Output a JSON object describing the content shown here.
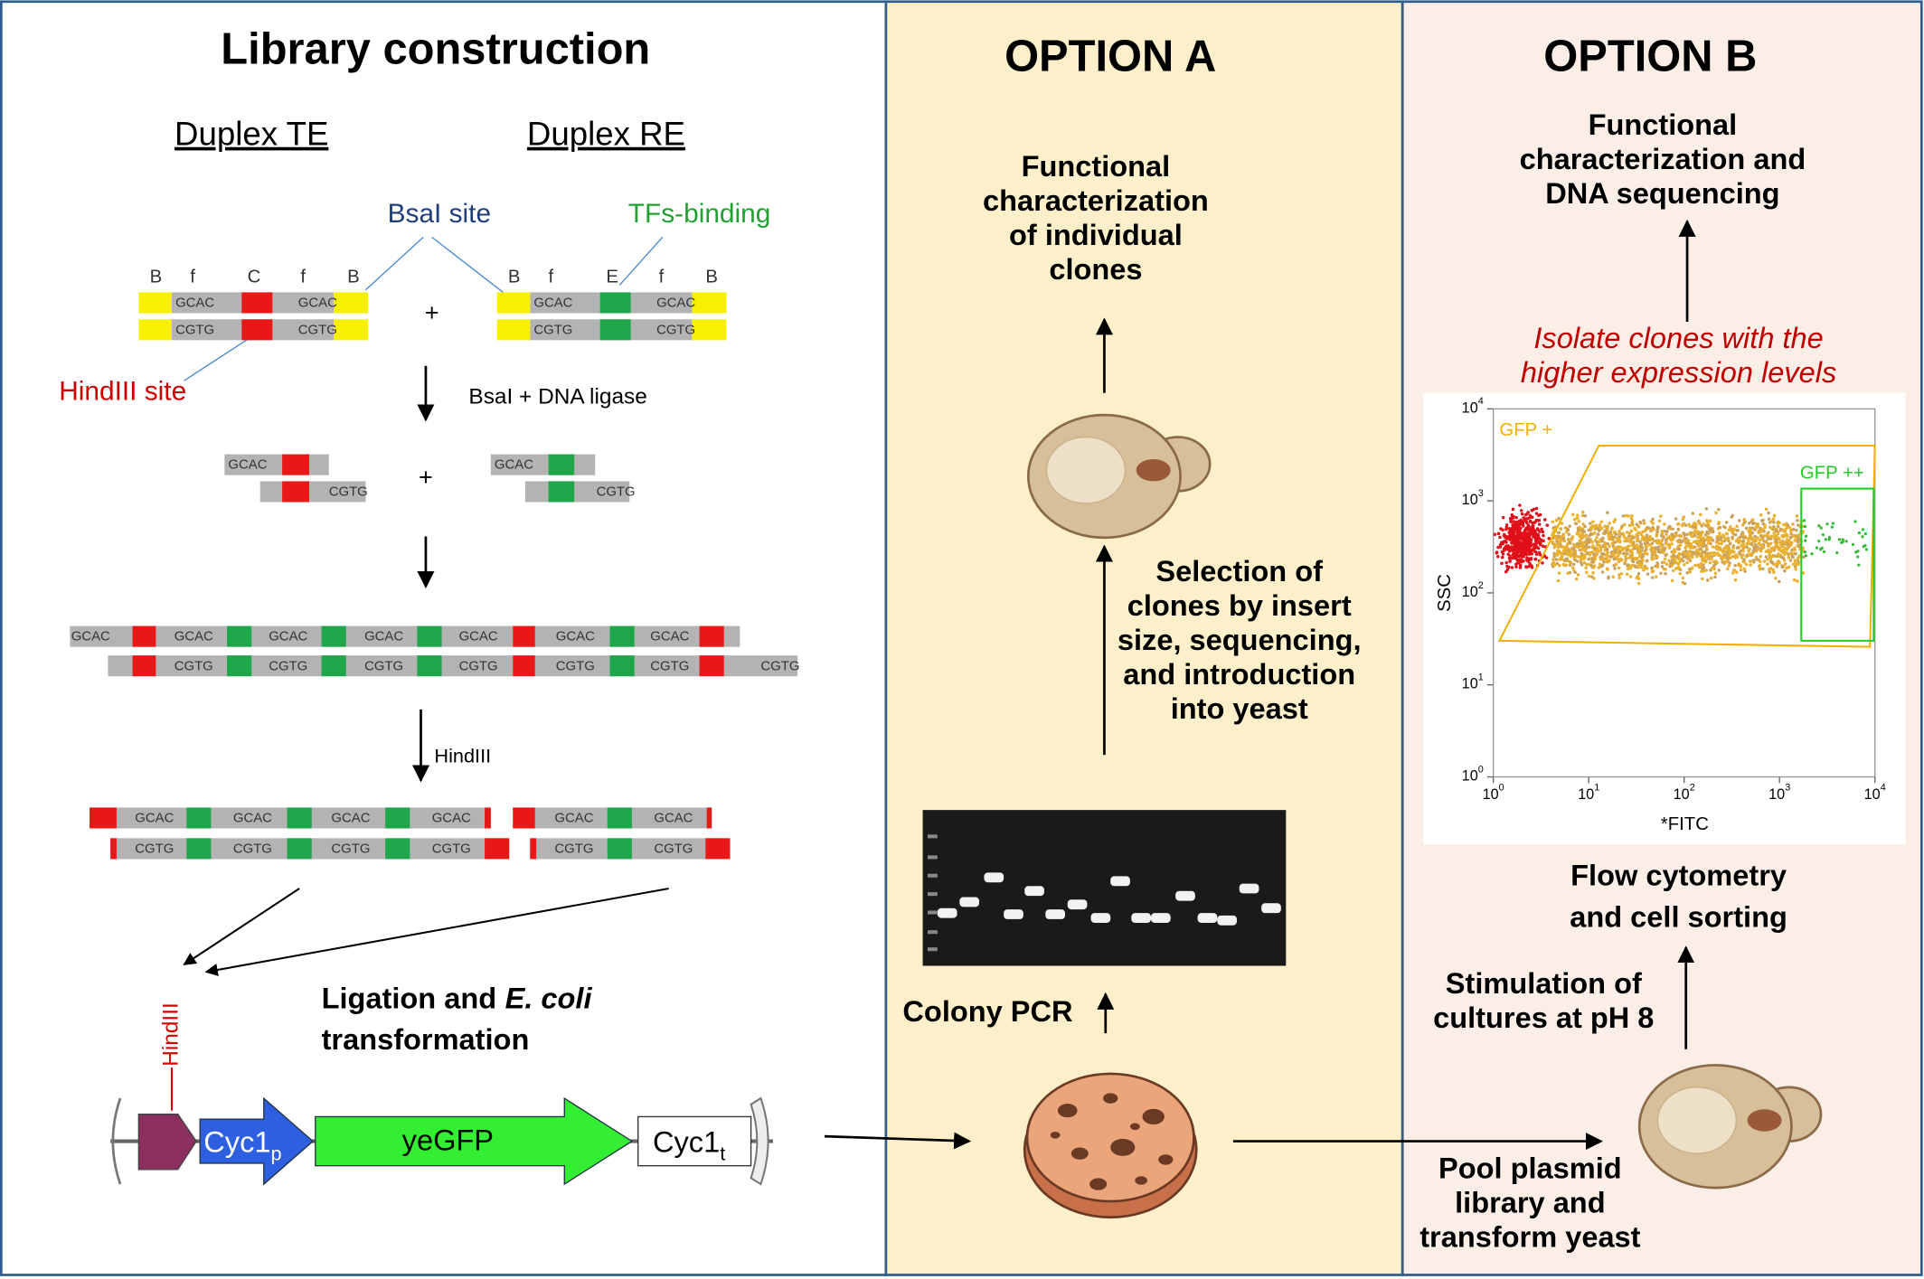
{
  "left_panel": {
    "title": "Library construction",
    "duplex_te": "Duplex TE",
    "duplex_re": "Duplex RE",
    "bsai_site": "BsaI site",
    "tfs_binding": "TFs-binding",
    "hindiii_site": "HindIII site",
    "site_letters": {
      "b": "B",
      "f": "f",
      "c": "C",
      "e": "E"
    },
    "dna": {
      "gcac": "GCAC",
      "cgtg": "CGTG"
    },
    "plus": "+",
    "step_ligase": "BsaI + DNA ligase",
    "step_hindiii": "HindIII",
    "ligation": {
      "line1": "Ligation and",
      "italic": "E. coli",
      "line2": "transformation"
    },
    "hindiii_vertical": "HindIII",
    "plasmid": {
      "promoter": "Cyc1",
      "promoter_sub": "p",
      "gene": "yeGFP",
      "terminator": "Cyc1",
      "terminator_sub": "t"
    }
  },
  "option_a": {
    "title": "OPTION A",
    "top_text": [
      "Functional",
      "characterization",
      "of individual",
      "clones"
    ],
    "selection_text": [
      "Selection of",
      "clones by insert",
      "size, sequencing,",
      "and introduction",
      "into yeast"
    ],
    "colony_pcr": "Colony PCR"
  },
  "option_b": {
    "title": "OPTION B",
    "top_text": [
      "Functional",
      "characterization and",
      "DNA sequencing"
    ],
    "isolate_text": [
      "Isolate clones with the",
      "higher expression levels"
    ],
    "plot": {
      "y_label": "SSC",
      "x_label": "*FITC",
      "gate_positive": "GFP +",
      "gate_high": "GFP ++",
      "ticks": [
        {
          "base": "10",
          "exp": "0"
        },
        {
          "base": "10",
          "exp": "1"
        },
        {
          "base": "10",
          "exp": "2"
        },
        {
          "base": "10",
          "exp": "3"
        },
        {
          "base": "10",
          "exp": "4"
        }
      ]
    },
    "flow_text": [
      "Flow cytometry",
      "and cell sorting"
    ],
    "stimulation_text": [
      "Stimulation of",
      "cultures at pH 8"
    ],
    "pool_text": [
      "Pool plasmid",
      "library and",
      "transform yeast"
    ]
  }
}
